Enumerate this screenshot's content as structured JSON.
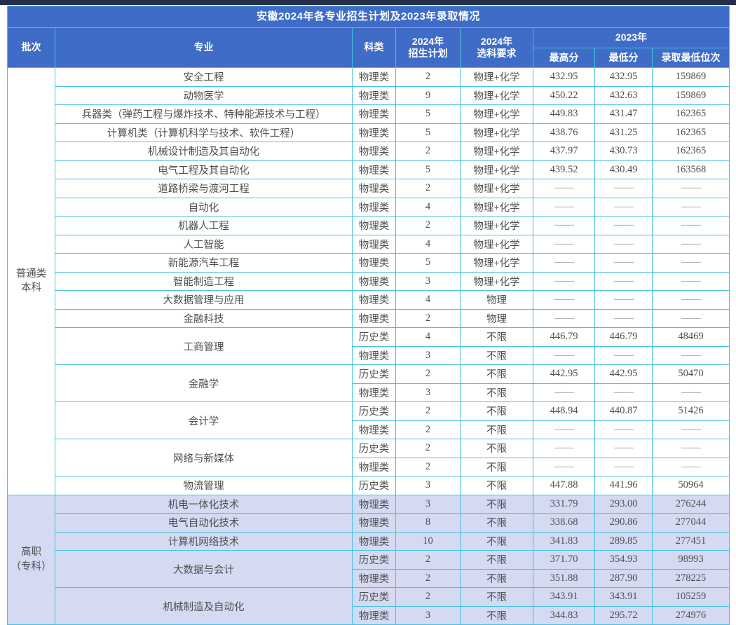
{
  "colors": {
    "top_strip": "#242e4a",
    "header_blue": "#3e6cc6",
    "border_cyan": "#45c2e2",
    "vocational_bg": "#d3daf1",
    "body_text": "#4f4f4f"
  },
  "table": {
    "title": "安徽2024年各专业招生计划及2023年录取情况",
    "dash": "——",
    "headers": {
      "batch": "批次",
      "major": "专业",
      "category": "科类",
      "plan_line1": "2024年",
      "plan_line2": "招生计划",
      "req_line1": "2024年",
      "req_line2": "选科要求",
      "year_2023": "2023年",
      "max_score": "最高分",
      "min_score": "最低分",
      "min_rank": "录取最低位次"
    },
    "rows": [
      {
        "section": "regular",
        "batch": {
          "text": "普通类\n本科",
          "rowspan": 23
        },
        "major": "安全工程",
        "category": "物理类",
        "plan": "2",
        "requirement": "物理+化学",
        "max": "432.95",
        "min": "432.95",
        "rank": "159869"
      },
      {
        "section": "regular",
        "major": "动物医学",
        "category": "物理类",
        "plan": "9",
        "requirement": "物理+化学",
        "max": "450.22",
        "min": "432.63",
        "rank": "159869"
      },
      {
        "section": "regular",
        "major": "兵器类（弹药工程与爆炸技术、特种能源技术与工程）",
        "category": "物理类",
        "plan": "5",
        "requirement": "物理+化学",
        "max": "449.83",
        "min": "431.47",
        "rank": "162365"
      },
      {
        "section": "regular",
        "major": "计算机类（计算机科学与技术、软件工程）",
        "category": "物理类",
        "plan": "5",
        "requirement": "物理+化学",
        "max": "438.76",
        "min": "431.25",
        "rank": "162365"
      },
      {
        "section": "regular",
        "major": "机械设计制造及其自动化",
        "category": "物理类",
        "plan": "2",
        "requirement": "物理+化学",
        "max": "437.97",
        "min": "430.73",
        "rank": "162365"
      },
      {
        "section": "regular",
        "major": "电气工程及其自动化",
        "category": "物理类",
        "plan": "5",
        "requirement": "物理+化学",
        "max": "439.52",
        "min": "430.49",
        "rank": "163568"
      },
      {
        "section": "regular",
        "major": "道路桥梁与渡河工程",
        "category": "物理类",
        "plan": "2",
        "requirement": "物理+化学",
        "max": "——",
        "min": "——",
        "rank": "——"
      },
      {
        "section": "regular",
        "major": "自动化",
        "category": "物理类",
        "plan": "4",
        "requirement": "物理+化学",
        "max": "——",
        "min": "——",
        "rank": "——"
      },
      {
        "section": "regular",
        "major": "机器人工程",
        "category": "物理类",
        "plan": "2",
        "requirement": "物理+化学",
        "max": "——",
        "min": "——",
        "rank": "——"
      },
      {
        "section": "regular",
        "major": "人工智能",
        "category": "物理类",
        "plan": "4",
        "requirement": "物理+化学",
        "max": "——",
        "min": "——",
        "rank": "——"
      },
      {
        "section": "regular",
        "major": "新能源汽车工程",
        "category": "物理类",
        "plan": "5",
        "requirement": "物理+化学",
        "max": "——",
        "min": "——",
        "rank": "——"
      },
      {
        "section": "regular",
        "major": "智能制造工程",
        "category": "物理类",
        "plan": "3",
        "requirement": "物理+化学",
        "max": "——",
        "min": "——",
        "rank": "——"
      },
      {
        "section": "regular",
        "major": "大数据管理与应用",
        "category": "物理类",
        "plan": "4",
        "requirement": "物理",
        "max": "——",
        "min": "——",
        "rank": "——"
      },
      {
        "section": "regular",
        "major": "金融科技",
        "category": "物理类",
        "plan": "2",
        "requirement": "物理",
        "max": "——",
        "min": "——",
        "rank": "——"
      },
      {
        "section": "regular",
        "major": "工商管理",
        "major_rowspan": 2,
        "category": "历史类",
        "plan": "4",
        "requirement": "不限",
        "max": "446.79",
        "min": "446.79",
        "rank": "48469"
      },
      {
        "section": "regular",
        "category": "物理类",
        "plan": "3",
        "requirement": "不限",
        "max": "——",
        "min": "——",
        "rank": "——"
      },
      {
        "section": "regular",
        "major": "金融学",
        "major_rowspan": 2,
        "category": "历史类",
        "plan": "2",
        "requirement": "不限",
        "max": "442.95",
        "min": "442.95",
        "rank": "50470"
      },
      {
        "section": "regular",
        "category": "物理类",
        "plan": "3",
        "requirement": "不限",
        "max": "——",
        "min": "——",
        "rank": "——"
      },
      {
        "section": "regular",
        "major": "会计学",
        "major_rowspan": 2,
        "category": "历史类",
        "plan": "2",
        "requirement": "不限",
        "max": "448.94",
        "min": "440.87",
        "rank": "51426"
      },
      {
        "section": "regular",
        "category": "物理类",
        "plan": "2",
        "requirement": "不限",
        "max": "——",
        "min": "——",
        "rank": "——"
      },
      {
        "section": "regular",
        "major": "网络与新媒体",
        "major_rowspan": 2,
        "category": "历史类",
        "plan": "2",
        "requirement": "不限",
        "max": "——",
        "min": "——",
        "rank": "——"
      },
      {
        "section": "regular",
        "category": "物理类",
        "plan": "2",
        "requirement": "不限",
        "max": "——",
        "min": "——",
        "rank": "——"
      },
      {
        "section": "regular",
        "major": "物流管理",
        "category": "历史类",
        "plan": "3",
        "requirement": "不限",
        "max": "447.88",
        "min": "441.96",
        "rank": "50964"
      },
      {
        "section": "vocational",
        "batch": {
          "text": "高职\n（专科）",
          "rowspan": 7
        },
        "major": "机电一体化技术",
        "category": "物理类",
        "plan": "3",
        "requirement": "不限",
        "max": "331.79",
        "min": "293.00",
        "rank": "276244"
      },
      {
        "section": "vocational",
        "major": "电气自动化技术",
        "category": "物理类",
        "plan": "8",
        "requirement": "不限",
        "max": "338.68",
        "min": "290.86",
        "rank": "277044"
      },
      {
        "section": "vocational",
        "major": "计算机网络技术",
        "category": "物理类",
        "plan": "10",
        "requirement": "不限",
        "max": "341.83",
        "min": "289.85",
        "rank": "277451"
      },
      {
        "section": "vocational",
        "major": "大数据与会计",
        "major_rowspan": 2,
        "category": "历史类",
        "plan": "2",
        "requirement": "不限",
        "max": "371.70",
        "min": "354.93",
        "rank": "98993"
      },
      {
        "section": "vocational",
        "category": "物理类",
        "plan": "2",
        "requirement": "不限",
        "max": "351.88",
        "min": "287.90",
        "rank": "278225"
      },
      {
        "section": "vocational",
        "major": "机械制造及自动化",
        "major_rowspan": 2,
        "category": "历史类",
        "plan": "2",
        "requirement": "不限",
        "max": "343.91",
        "min": "343.91",
        "rank": "105259"
      },
      {
        "section": "vocational",
        "category": "物理类",
        "plan": "3",
        "requirement": "不限",
        "max": "344.83",
        "min": "295.72",
        "rank": "274976"
      }
    ]
  }
}
